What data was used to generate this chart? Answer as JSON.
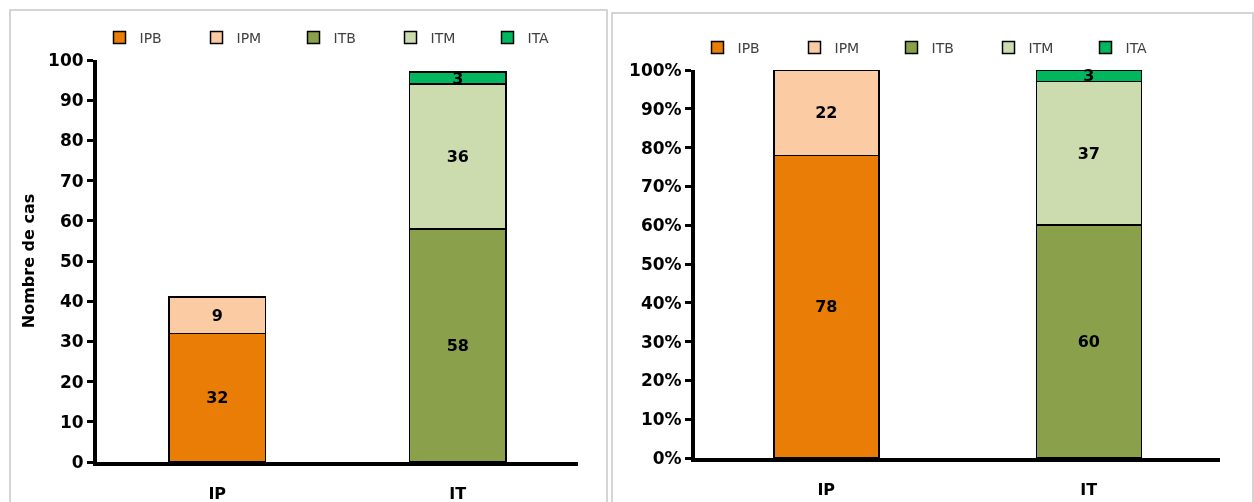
{
  "chart_data": [
    {
      "type": "bar",
      "stacked": true,
      "categories": [
        "IP",
        "IT"
      ],
      "ylabel": "Nombre de cas",
      "series": [
        {
          "name": "IPB",
          "color": "#ea7d05",
          "values": [
            32,
            null
          ]
        },
        {
          "name": "IPM",
          "color": "#fbcba3",
          "values": [
            9,
            null
          ]
        },
        {
          "name": "ITB",
          "color": "#8aa04b",
          "values": [
            null,
            58
          ]
        },
        {
          "name": "ITM",
          "color": "#cddcae",
          "values": [
            null,
            36
          ]
        },
        {
          "name": "ITA",
          "color": "#00b75f",
          "values": [
            null,
            3
          ]
        }
      ],
      "ylim": [
        0,
        100
      ],
      "yticks": [
        0,
        10,
        20,
        30,
        40,
        50,
        60,
        70,
        80,
        90,
        100
      ],
      "data_labels": true,
      "legend": "top"
    },
    {
      "type": "bar",
      "stacked": true,
      "categories": [
        "IP",
        "IT"
      ],
      "series": [
        {
          "name": "IPB",
          "color": "#ea7d05",
          "values": [
            78,
            null
          ]
        },
        {
          "name": "IPM",
          "color": "#fbcba3",
          "values": [
            22,
            null
          ]
        },
        {
          "name": "ITB",
          "color": "#8aa04b",
          "values": [
            null,
            60
          ]
        },
        {
          "name": "ITM",
          "color": "#cddcae",
          "values": [
            null,
            37
          ]
        },
        {
          "name": "ITA",
          "color": "#00b75f",
          "values": [
            null,
            3
          ]
        }
      ],
      "ylim": [
        0,
        100
      ],
      "yticks": [
        {
          "value": 0,
          "label": "0%"
        },
        {
          "value": 10,
          "label": "10%"
        },
        {
          "value": 20,
          "label": "20%"
        },
        {
          "value": 30,
          "label": "30%"
        },
        {
          "value": 40,
          "label": "40%"
        },
        {
          "value": 50,
          "label": "50%"
        },
        {
          "value": 60,
          "label": "60%"
        },
        {
          "value": 70,
          "label": "70%"
        },
        {
          "value": 80,
          "label": "80%"
        },
        {
          "value": 90,
          "label": "90%"
        },
        {
          "value": 100,
          "label": "100%"
        }
      ],
      "data_labels": true,
      "legend": "top"
    }
  ]
}
